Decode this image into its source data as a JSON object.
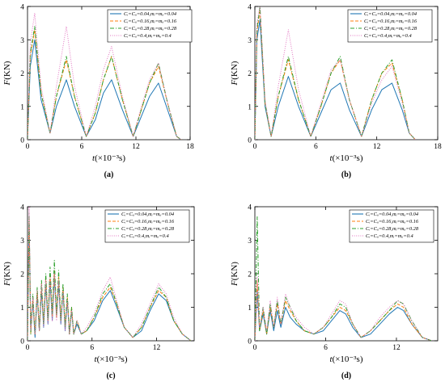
{
  "chart_data": [
    {
      "type": "line",
      "panel_label": "(a)",
      "xlabel_var": "t",
      "xlabel_unit": "(×10⁻³s)",
      "ylabel_var": "F",
      "ylabel_unit": "(KN)",
      "xlim": [
        0,
        18
      ],
      "ylim": [
        0,
        4
      ],
      "xticks": [
        "0",
        "6",
        "12",
        "18"
      ],
      "yticks": [
        "0",
        "1",
        "2",
        "3",
        "4"
      ],
      "legend_position": "top-right",
      "series": [
        {
          "name": "Cᵢ=Cᵢᵢ=0.04,mᵢ=mᵢᵢ=0.04",
          "color": "#1f77b4",
          "dash": "solid",
          "x": [
            0,
            0.3,
            0.8,
            1.5,
            2.5,
            3.2,
            4.3,
            5.2,
            6.5,
            7.5,
            8.4,
            9.3,
            10.5,
            11.7,
            12.6,
            13.5,
            14.5,
            15.5,
            16.5,
            17.0
          ],
          "y": [
            0,
            2.2,
            3.0,
            1.2,
            0.2,
            1.0,
            1.8,
            1.0,
            0.1,
            0.6,
            1.4,
            1.8,
            0.9,
            0.1,
            0.7,
            1.3,
            1.7,
            0.9,
            0.1,
            0
          ]
        },
        {
          "name": "Cᵢ=Cᵢᵢ=0.16,mᵢ=mᵢᵢ=0.16",
          "color": "#ff7f0e",
          "dash": "dash",
          "x": [
            0,
            0.3,
            0.8,
            1.5,
            2.5,
            3.2,
            4.3,
            5.2,
            6.5,
            7.5,
            8.4,
            9.3,
            10.5,
            11.7,
            12.6,
            13.5,
            14.5,
            15.5,
            16.5,
            17.0
          ],
          "y": [
            0,
            2.5,
            3.3,
            1.4,
            0.2,
            1.3,
            2.4,
            1.3,
            0.1,
            0.8,
            1.8,
            2.5,
            1.2,
            0.1,
            0.9,
            1.7,
            2.2,
            1.1,
            0.1,
            0
          ]
        },
        {
          "name": "Cᵢ=Cᵢᵢ=0.28,mᵢ=mᵢᵢ=0.28",
          "color": "#2ca02c",
          "dash": "dashdot",
          "x": [
            0,
            0.3,
            0.8,
            1.5,
            2.5,
            3.2,
            4.3,
            5.2,
            6.5,
            7.5,
            8.4,
            9.3,
            10.5,
            11.7,
            12.6,
            13.5,
            14.5,
            15.5,
            16.5,
            17.0
          ],
          "y": [
            0,
            2.6,
            3.4,
            1.4,
            0.2,
            1.3,
            2.5,
            1.3,
            0.1,
            0.8,
            1.8,
            2.5,
            1.2,
            0.1,
            0.9,
            1.7,
            2.3,
            1.1,
            0.1,
            0
          ]
        },
        {
          "name": "Cᵢ=Cᵢᵢ=0.4,mᵢ=mᵢᵢ=0.4",
          "color": "#e377c2",
          "dash": "dot",
          "x": [
            0,
            0.3,
            0.8,
            1.5,
            2.5,
            3.2,
            4.3,
            5.2,
            6.5,
            7.5,
            8.4,
            9.3,
            10.5,
            11.7,
            12.6,
            13.5,
            14.5,
            15.5,
            16.5,
            17.0
          ],
          "y": [
            0,
            2.9,
            3.8,
            1.6,
            0.2,
            1.6,
            3.4,
            1.6,
            0.1,
            1.0,
            2.1,
            2.8,
            1.3,
            0.1,
            1.0,
            1.8,
            2.3,
            1.1,
            0.1,
            0
          ]
        }
      ]
    },
    {
      "type": "line",
      "panel_label": "(b)",
      "xlabel_var": "t",
      "xlabel_unit": "(×10⁻³s)",
      "ylabel_var": "F",
      "ylabel_unit": "(KN)",
      "xlim": [
        0,
        18
      ],
      "ylim": [
        0,
        4
      ],
      "xticks": [
        "0",
        "6",
        "12",
        "18"
      ],
      "yticks": [
        "0",
        "1",
        "2",
        "3",
        "4"
      ],
      "legend_position": "top-right",
      "series": [
        {
          "name": "Cᵢ=Cᵢᵢ=0.04,mᵢ=mᵢᵢ=0.04",
          "color": "#1f77b4",
          "dash": "solid",
          "x": [
            0,
            0.2,
            0.5,
            1.0,
            1.6,
            2.3,
            3.3,
            4.3,
            5.5,
            6.5,
            7.5,
            8.4,
            9.3,
            10.5,
            11.5,
            12.5,
            13.5,
            14.5,
            15.2,
            15.8
          ],
          "y": [
            0,
            3.0,
            3.6,
            1.0,
            0.1,
            1.0,
            1.9,
            1.0,
            0.1,
            0.8,
            1.5,
            1.7,
            0.9,
            0.1,
            0.9,
            1.5,
            1.7,
            0.9,
            0.2,
            0
          ]
        },
        {
          "name": "Cᵢ=Cᵢᵢ=0.16,mᵢ=mᵢᵢ=0.16",
          "color": "#ff7f0e",
          "dash": "dash",
          "x": [
            0,
            0.2,
            0.5,
            1.0,
            1.6,
            2.3,
            3.3,
            4.3,
            5.5,
            6.5,
            7.5,
            8.4,
            9.3,
            10.5,
            11.5,
            12.5,
            13.5,
            14.5,
            15.2,
            15.8
          ],
          "y": [
            0,
            3.2,
            3.9,
            1.1,
            0.1,
            1.3,
            2.4,
            1.2,
            0.1,
            1.0,
            2.0,
            2.4,
            1.2,
            0.1,
            1.2,
            2.0,
            2.3,
            1.2,
            0.2,
            0
          ]
        },
        {
          "name": "Cᵢ=Cᵢᵢ=0.28,mᵢ=mᵢᵢ=0.28",
          "color": "#2ca02c",
          "dash": "dashdot",
          "x": [
            0,
            0.2,
            0.5,
            1.0,
            1.6,
            2.3,
            3.3,
            4.3,
            5.5,
            6.5,
            7.5,
            8.4,
            9.3,
            10.5,
            11.5,
            12.5,
            13.5,
            14.5,
            15.2,
            15.8
          ],
          "y": [
            0,
            3.3,
            4.0,
            1.1,
            0.1,
            1.3,
            2.5,
            1.2,
            0.1,
            1.0,
            2.0,
            2.5,
            1.2,
            0.1,
            1.2,
            2.0,
            2.4,
            1.2,
            0.2,
            0
          ]
        },
        {
          "name": "Cᵢ=Cᵢᵢ=0.4,mᵢ=mᵢᵢ=0.4",
          "color": "#e377c2",
          "dash": "dot",
          "x": [
            0,
            0.2,
            0.5,
            1.0,
            1.6,
            2.3,
            3.3,
            4.3,
            5.5,
            6.5,
            7.5,
            8.4,
            9.3,
            10.5,
            11.5,
            12.5,
            13.5,
            14.5,
            15.2,
            15.8
          ],
          "y": [
            0,
            3.5,
            4.0,
            1.2,
            0.1,
            1.6,
            3.3,
            1.5,
            0.1,
            1.1,
            2.1,
            2.4,
            1.2,
            0.1,
            1.1,
            1.8,
            2.2,
            1.1,
            0.2,
            0
          ]
        }
      ]
    },
    {
      "type": "line",
      "panel_label": "(c)",
      "xlabel_var": "t",
      "xlabel_unit": "(×10⁻³s)",
      "ylabel_var": "F",
      "ylabel_unit": "(KN)",
      "xlim": [
        0,
        15.5
      ],
      "ylim": [
        0,
        4
      ],
      "xticks": [
        "0",
        "6",
        "12"
      ],
      "yticks": [
        "0",
        "1",
        "2",
        "3",
        "4"
      ],
      "legend_position": "top-right",
      "series": [
        {
          "name": "Cᵢ=Cᵢᵢ=0.04,mᵢ=mᵢᵢ=0.04",
          "color": "#1f77b4",
          "dash": "solid",
          "x": [
            0,
            0.15,
            0.3,
            0.5,
            0.7,
            0.9,
            1.1,
            1.3,
            1.5,
            1.7,
            1.9,
            2.1,
            2.3,
            2.5,
            2.7,
            2.9,
            3.1,
            3.3,
            3.5,
            3.7,
            3.9,
            4.1,
            4.3,
            4.6,
            5.0,
            5.5,
            6.2,
            7.0,
            7.7,
            8.3,
            9.0,
            9.8,
            10.6,
            11.4,
            12.2,
            12.9,
            13.6,
            14.4,
            15.2
          ],
          "y": [
            0,
            3.6,
            0.3,
            1.2,
            0.1,
            1.4,
            0.3,
            1.5,
            0.4,
            1.7,
            0.5,
            1.8,
            0.6,
            1.9,
            0.7,
            1.7,
            0.5,
            1.5,
            0.3,
            1.2,
            0.2,
            0.9,
            0.2,
            0.5,
            0.2,
            0.3,
            0.6,
            1.2,
            1.5,
            1.0,
            0.4,
            0.1,
            0.3,
            0.9,
            1.4,
            1.2,
            0.6,
            0.2,
            0
          ]
        },
        {
          "name": "Cᵢ=Cᵢᵢ=0.16,mᵢ=mᵢᵢ=0.16",
          "color": "#ff7f0e",
          "dash": "dash",
          "x": [
            0,
            0.15,
            0.3,
            0.5,
            0.7,
            0.9,
            1.1,
            1.3,
            1.5,
            1.7,
            1.9,
            2.1,
            2.3,
            2.5,
            2.7,
            2.9,
            3.1,
            3.3,
            3.5,
            3.7,
            3.9,
            4.1,
            4.3,
            4.6,
            5.0,
            5.5,
            6.2,
            7.0,
            7.7,
            8.3,
            9.0,
            9.8,
            10.6,
            11.4,
            12.2,
            12.9,
            13.6,
            14.4,
            15.2
          ],
          "y": [
            0,
            3.7,
            0.2,
            1.3,
            0.2,
            1.5,
            0.3,
            1.7,
            0.5,
            1.9,
            0.6,
            2.0,
            0.7,
            2.1,
            0.7,
            1.9,
            0.6,
            1.6,
            0.4,
            1.3,
            0.2,
            1.0,
            0.2,
            0.6,
            0.2,
            0.3,
            0.7,
            1.3,
            1.6,
            1.1,
            0.4,
            0.1,
            0.4,
            1.0,
            1.5,
            1.3,
            0.6,
            0.2,
            0
          ]
        },
        {
          "name": "Cᵢ=Cᵢᵢ=0.28,mᵢ=mᵢᵢ=0.28",
          "color": "#2ca02c",
          "dash": "dashdot",
          "x": [
            0,
            0.15,
            0.3,
            0.5,
            0.7,
            0.9,
            1.1,
            1.3,
            1.5,
            1.7,
            1.9,
            2.1,
            2.3,
            2.5,
            2.7,
            2.9,
            3.1,
            3.3,
            3.5,
            3.7,
            3.9,
            4.1,
            4.3,
            4.6,
            5.0,
            5.5,
            6.2,
            7.0,
            7.7,
            8.3,
            9.0,
            9.8,
            10.6,
            11.4,
            12.2,
            12.9,
            13.6,
            14.4,
            15.2
          ],
          "y": [
            0,
            3.8,
            0.2,
            1.4,
            0.2,
            1.6,
            0.3,
            1.8,
            0.5,
            2.0,
            0.6,
            2.2,
            0.8,
            2.4,
            0.8,
            2.1,
            0.6,
            1.7,
            0.4,
            1.4,
            0.2,
            1.0,
            0.2,
            0.6,
            0.2,
            0.3,
            0.7,
            1.4,
            1.7,
            1.1,
            0.4,
            0.1,
            0.4,
            1.0,
            1.6,
            1.3,
            0.6,
            0.2,
            0
          ]
        },
        {
          "name": "Cᵢ=Cᵢᵢ=0.4,mᵢ=mᵢᵢ=0.4",
          "color": "#e377c2",
          "dash": "dot",
          "x": [
            0,
            0.15,
            0.3,
            0.5,
            0.7,
            0.9,
            1.1,
            1.3,
            1.5,
            1.7,
            1.9,
            2.1,
            2.3,
            2.5,
            2.7,
            2.9,
            3.1,
            3.3,
            3.5,
            3.7,
            3.9,
            4.1,
            4.3,
            4.6,
            5.0,
            5.5,
            6.2,
            7.0,
            7.7,
            8.3,
            9.0,
            9.8,
            10.6,
            11.4,
            12.2,
            12.9,
            13.6,
            14.4,
            15.2
          ],
          "y": [
            0,
            4.0,
            0.3,
            1.3,
            0.2,
            1.5,
            0.3,
            1.7,
            0.4,
            1.8,
            0.5,
            1.9,
            0.6,
            2.0,
            0.6,
            1.8,
            0.5,
            1.5,
            0.3,
            1.2,
            0.2,
            0.9,
            0.2,
            0.6,
            0.2,
            0.4,
            0.8,
            1.5,
            1.9,
            1.2,
            0.4,
            0.1,
            0.5,
            1.1,
            1.7,
            1.4,
            0.7,
            0.2,
            0
          ]
        }
      ]
    },
    {
      "type": "line",
      "panel_label": "(d)",
      "xlabel_var": "t",
      "xlabel_unit": "(×10⁻³s)",
      "ylabel_var": "F",
      "ylabel_unit": "(KN)",
      "xlim": [
        0,
        15.5
      ],
      "ylim": [
        0,
        4
      ],
      "xticks": [
        "0",
        "6",
        "12"
      ],
      "yticks": [
        "0",
        "1",
        "2",
        "3",
        "4"
      ],
      "legend_position": "top-right",
      "series": [
        {
          "name": "Cᵢ=Cᵢᵢ=0.04,mᵢ=mᵢᵢ=0.04",
          "color": "#1f77b4",
          "dash": "solid",
          "x": [
            0,
            0.2,
            0.4,
            0.7,
            1.0,
            1.3,
            1.6,
            1.9,
            2.2,
            2.6,
            3.0,
            3.5,
            4.2,
            5.0,
            5.8,
            6.5,
            7.2,
            7.7,
            8.3,
            9.0,
            9.8,
            10.6,
            11.4,
            12.1,
            12.6,
            13.3,
            14.2,
            15.0
          ],
          "y": [
            0,
            1.5,
            0.3,
            0.8,
            0.2,
            0.9,
            0.3,
            0.9,
            0.4,
            1.0,
            0.7,
            0.5,
            0.3,
            0.2,
            0.3,
            0.6,
            0.9,
            0.8,
            0.4,
            0.1,
            0.2,
            0.5,
            0.8,
            1.0,
            0.9,
            0.5,
            0.1,
            0
          ]
        },
        {
          "name": "Cᵢ=Cᵢᵢ=0.16,mᵢ=mᵢᵢ=0.16",
          "color": "#ff7f0e",
          "dash": "dash",
          "x": [
            0,
            0.2,
            0.4,
            0.7,
            1.0,
            1.3,
            1.6,
            1.9,
            2.2,
            2.6,
            3.0,
            3.5,
            4.2,
            5.0,
            5.8,
            6.5,
            7.2,
            7.7,
            8.3,
            9.0,
            9.8,
            10.6,
            11.4,
            12.1,
            12.6,
            13.3,
            14.2,
            15.0
          ],
          "y": [
            0,
            1.8,
            0.3,
            0.9,
            0.2,
            1.0,
            0.4,
            1.1,
            0.5,
            1.2,
            0.9,
            0.6,
            0.3,
            0.2,
            0.4,
            0.7,
            1.0,
            0.9,
            0.5,
            0.1,
            0.3,
            0.6,
            0.9,
            1.1,
            1.0,
            0.5,
            0.1,
            0
          ]
        },
        {
          "name": "Cᵢ=Cᵢᵢ=0.28,mᵢ=mᵢᵢ=0.28",
          "color": "#2ca02c",
          "dash": "dashdot",
          "x": [
            0,
            0.2,
            0.4,
            0.7,
            1.0,
            1.3,
            1.6,
            1.9,
            2.2,
            2.6,
            3.0,
            3.5,
            4.2,
            5.0,
            5.8,
            6.5,
            7.2,
            7.7,
            8.3,
            9.0,
            9.8,
            10.6,
            11.4,
            12.1,
            12.6,
            13.3,
            14.2,
            15.0
          ],
          "y": [
            0,
            3.7,
            0.3,
            1.0,
            0.2,
            1.1,
            0.4,
            1.2,
            0.5,
            1.3,
            1.0,
            0.6,
            0.3,
            0.2,
            0.4,
            0.7,
            1.1,
            1.0,
            0.5,
            0.1,
            0.3,
            0.6,
            0.9,
            1.2,
            1.1,
            0.6,
            0.1,
            0
          ]
        },
        {
          "name": "Cᵢ=Cᵢᵢ=0.4,mᵢ=mᵢᵢ=0.4",
          "color": "#e377c2",
          "dash": "dot",
          "x": [
            0,
            0.2,
            0.4,
            0.7,
            1.0,
            1.3,
            1.6,
            1.9,
            2.2,
            2.6,
            3.0,
            3.5,
            4.2,
            5.0,
            5.8,
            6.5,
            7.2,
            7.7,
            8.3,
            9.0,
            9.8,
            10.6,
            11.4,
            12.1,
            12.6,
            13.3,
            14.2,
            15.0
          ],
          "y": [
            0,
            1.9,
            0.4,
            1.0,
            0.3,
            1.2,
            0.4,
            1.3,
            0.5,
            1.4,
            1.0,
            0.7,
            0.4,
            0.2,
            0.4,
            0.8,
            1.2,
            1.1,
            0.5,
            0.1,
            0.3,
            0.7,
            1.0,
            1.2,
            1.1,
            0.6,
            0.1,
            0
          ]
        }
      ]
    }
  ]
}
